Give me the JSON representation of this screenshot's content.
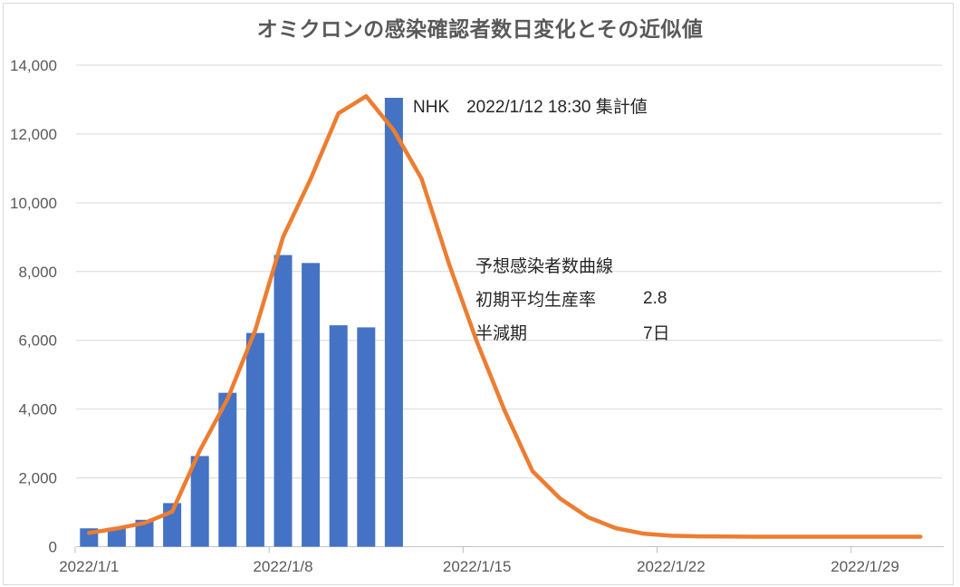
{
  "chart": {
    "title": "オミクロンの感染確認者数日変化とその近似値",
    "annotations": {
      "nhk_note": "NHK　2022/1/12 18:30 集計値",
      "curve_label": "予想感染者数曲線",
      "params": [
        {
          "label": "初期平均生産率",
          "value": "2.8"
        },
        {
          "label": "半減期",
          "value": "7日"
        }
      ]
    }
  },
  "chart_data": {
    "type": "bar+line",
    "title": "オミクロンの感染確認者数日変化とその近似値",
    "x_unit": "date (2022/1/1 - 2022/1/31, daily categories)",
    "x_tick_labels": [
      "2022/1/1",
      "2022/1/8",
      "2022/1/15",
      "2022/1/22",
      "2022/1/29"
    ],
    "x_tick_days": [
      1,
      8,
      15,
      22,
      29
    ],
    "y_ticks": [
      0,
      2000,
      4000,
      6000,
      8000,
      10000,
      12000,
      14000
    ],
    "y_tick_labels": [
      "0",
      "2,000",
      "4,000",
      "6,000",
      "8,000",
      "10,000",
      "12,000",
      "14,000"
    ],
    "ylim": [
      0,
      14000
    ],
    "grid": true,
    "legend": false,
    "series": [
      {
        "name": "NHK集計 感染確認者数 (bars, 2022/1/1-1/12)",
        "type": "bar",
        "color": "#4472C4",
        "days": [
          1,
          2,
          3,
          4,
          5,
          6,
          7,
          8,
          9,
          10,
          11,
          12
        ],
        "values": [
          534,
          554,
          782,
          1268,
          2636,
          4475,
          6214,
          8480,
          8249,
          6438,
          6377,
          13052
        ]
      },
      {
        "name": "予想感染者数曲線 (approximation line, 2022/1/1-1/31)",
        "type": "line",
        "color": "#ED7D31",
        "days": [
          1,
          2,
          3,
          4,
          5,
          6,
          7,
          8,
          9,
          10,
          11,
          12,
          13,
          14,
          15,
          16,
          17,
          18,
          19,
          20,
          21,
          22,
          23,
          24,
          25,
          26,
          27,
          28,
          29,
          30,
          31
        ],
        "values": [
          400,
          530,
          690,
          1020,
          2800,
          4300,
          6300,
          9000,
          10700,
          12600,
          13100,
          12100,
          10700,
          8200,
          5950,
          3950,
          2200,
          1400,
          860,
          540,
          380,
          320,
          300,
          295,
          290,
          290,
          290,
          290,
          290,
          290,
          290
        ]
      }
    ],
    "model_params": {
      "initial_average_production_rate": 2.8,
      "half_life_days": 7
    }
  },
  "colors": {
    "bar": "#4472C4",
    "line": "#ED7D31",
    "gridline": "#d9d9d9",
    "axis_line": "#c3c3c3",
    "tick": "#bfbfbf",
    "axis_text": "#595959",
    "title_text": "#595959",
    "annotation_text": "#262626",
    "frame_border": "#d9d9d9"
  }
}
